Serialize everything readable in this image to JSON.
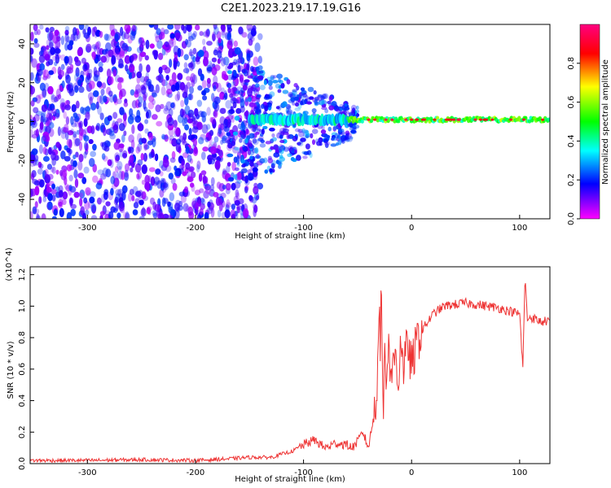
{
  "chart_data": [
    {
      "type": "heatmap",
      "title": "C2E1.2023.219.17.19.G16",
      "xlabel": "Height of straight line (km)",
      "ylabel": "Frequency (Hz)",
      "xlim": [
        -353,
        128
      ],
      "ylim": [
        -50,
        50
      ],
      "xticks": [
        -300,
        -200,
        -100,
        0,
        100
      ],
      "yticks": [
        -40,
        -20,
        0,
        20,
        40
      ],
      "colorbar": {
        "label": "Normalized spectral amplitude",
        "range": [
          0.0,
          1.0
        ],
        "ticks": [
          0.0,
          0.2,
          0.4,
          0.6,
          0.8
        ],
        "colors": [
          "#ff00ff",
          "#0000ff",
          "#00ffff",
          "#00ff00",
          "#ffff00",
          "#ff0000",
          "#ff0080"
        ]
      },
      "bands": [
        {
          "x": [
            -353,
            -170
          ],
          "y": [
            -50,
            50
          ],
          "amplitude": 0.12
        },
        {
          "x": [
            -170,
            -60
          ],
          "y": [
            -25,
            25
          ],
          "amplitude": 0.25
        },
        {
          "x": [
            -60,
            128
          ],
          "y": [
            -2,
            4
          ],
          "amplitude": 0.55
        }
      ],
      "line_center_hz": 1
    },
    {
      "type": "line",
      "title": "",
      "xlabel": "Height of straight line (km)",
      "ylabel": "SNR (10 * v/v)",
      "yscale_label": "(x10^4)",
      "xlim": [
        -353,
        128
      ],
      "ylim": [
        0.0,
        1.25
      ],
      "xticks": [
        -300,
        -200,
        -100,
        0,
        100
      ],
      "yticks": [
        0.0,
        0.2,
        0.4,
        0.6,
        0.8,
        1.0,
        1.2
      ],
      "series": [
        {
          "color": "#ee3333",
          "x": [
            -353,
            -300,
            -250,
            -200,
            -170,
            -150,
            -130,
            -110,
            -100,
            -90,
            -80,
            -70,
            -60,
            -55,
            -50,
            -45,
            -40,
            -35,
            -32,
            -30,
            -29,
            -28,
            -27,
            -26,
            -25,
            -24,
            -22,
            -20,
            -18,
            -15,
            -12,
            -10,
            -8,
            -5,
            -3,
            0,
            5,
            10,
            15,
            20,
            30,
            40,
            50,
            60,
            70,
            80,
            90,
            100,
            103,
            105,
            107,
            110,
            120,
            128
          ],
          "y": [
            0.02,
            0.02,
            0.025,
            0.02,
            0.03,
            0.04,
            0.04,
            0.08,
            0.12,
            0.15,
            0.1,
            0.13,
            0.12,
            0.1,
            0.14,
            0.2,
            0.1,
            0.3,
            0.5,
            1.1,
            0.7,
            1.12,
            0.6,
            0.35,
            0.9,
            0.5,
            0.75,
            0.65,
            0.55,
            0.72,
            0.5,
            0.85,
            0.6,
            0.7,
            0.75,
            0.6,
            0.78,
            0.85,
            0.9,
            0.95,
            1.0,
            1.01,
            1.02,
            1.01,
            1.0,
            0.99,
            0.97,
            0.95,
            0.6,
            1.2,
            0.92,
            0.93,
            0.9,
            0.91
          ]
        }
      ]
    }
  ]
}
